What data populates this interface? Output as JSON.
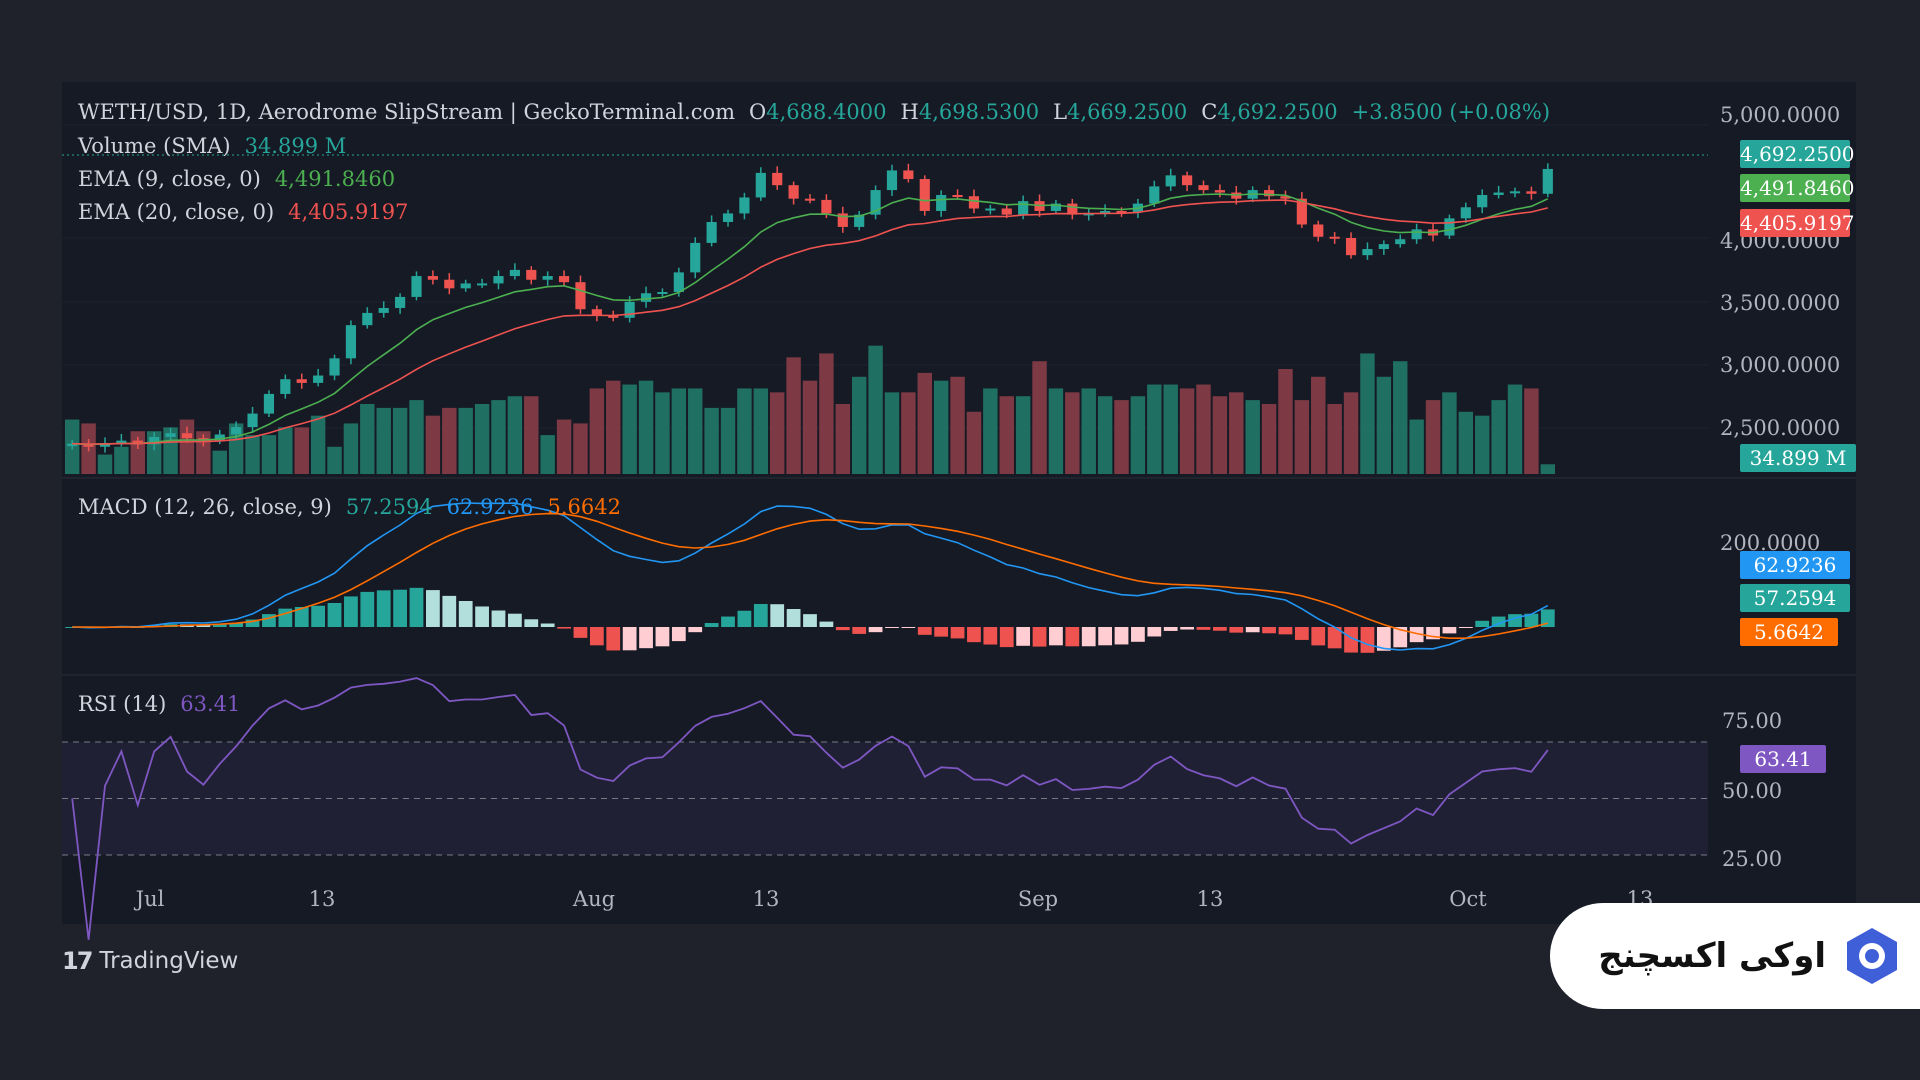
{
  "legend": {
    "symbol": "WETH/USD, 1D, Aerodrome SlipStream | GeckoTerminal.com",
    "open_label": "O",
    "open": "4,688.4000",
    "high_label": "H",
    "high": "4,698.5300",
    "low_label": "L",
    "low": "4,669.2500",
    "close_label": "C",
    "close": "4,692.2500",
    "change": "+3.8500 (+0.08%)",
    "volume_label": "Volume (SMA)",
    "volume": "34.899 M",
    "ema9_label": "EMA (9, close, 0)",
    "ema9": "4,491.8460",
    "ema20_label": "EMA (20, close, 0)",
    "ema20": "4,405.9197",
    "macd_label": "MACD (12, 26, close, 9)",
    "macd_hist": "57.2594",
    "macd_line": "62.9236",
    "macd_signal": "5.6642",
    "rsi_label": "RSI (14)",
    "rsi": "63.41"
  },
  "badges": {
    "price": "4,692.2500",
    "ema9": "4,491.8460",
    "ema20": "4,405.9197",
    "volume": "34.899 M",
    "macd_line": "62.9236",
    "macd_hist": "57.2594",
    "macd_signal": "5.6642",
    "rsi": "63.41"
  },
  "colors": {
    "up": "#26a69a",
    "down": "#ef5350",
    "ema9": "#4caf50",
    "ema20": "#ef5350",
    "macd": "#2196f3",
    "signal": "#ff6d00",
    "rsi": "#7e57c2"
  },
  "brand": {
    "tradingview": "TradingView",
    "okx": "اوکی اکسچنج"
  },
  "chart_data": {
    "type": "candlestick",
    "price_axis": {
      "ticks": [
        "5,000.0000",
        "4,000.0000",
        "3,500.0000",
        "3,000.0000",
        "2,500.0000"
      ],
      "range": [
        2200,
        5050
      ]
    },
    "time_axis": {
      "ticks": [
        "Jul",
        "13",
        "Aug",
        "13",
        "Sep",
        "13",
        "Oct",
        "13"
      ]
    },
    "macd_axis": {
      "ticks": [
        "200.0000"
      ]
    },
    "rsi_axis": {
      "ticks": [
        "75.00",
        "50.00",
        "25.00"
      ],
      "bands": [
        70,
        50,
        30
      ]
    },
    "closes": [
      2455,
      2430,
      2460,
      2480,
      2450,
      2510,
      2540,
      2500,
      2480,
      2530,
      2590,
      2700,
      2860,
      2980,
      2950,
      3010,
      3150,
      3420,
      3520,
      3560,
      3650,
      3820,
      3790,
      3720,
      3760,
      3760,
      3820,
      3870,
      3790,
      3820,
      3770,
      3550,
      3500,
      3480,
      3610,
      3680,
      3690,
      3850,
      4090,
      4260,
      4330,
      4460,
      4660,
      4560,
      4450,
      4440,
      4330,
      4220,
      4320,
      4520,
      4680,
      4610,
      4350,
      4480,
      4470,
      4370,
      4370,
      4320,
      4430,
      4350,
      4410,
      4320,
      4330,
      4350,
      4340,
      4410,
      4550,
      4640,
      4560,
      4520,
      4500,
      4450,
      4520,
      4470,
      4450,
      4240,
      4140,
      4130,
      3990,
      4040,
      4080,
      4120,
      4200,
      4150,
      4290,
      4380,
      4480,
      4500,
      4510,
      4490,
      4692
    ],
    "volume_M": [
      28,
      26,
      10,
      14,
      22,
      22,
      24,
      28,
      22,
      12,
      26,
      20,
      20,
      24,
      24,
      30,
      14,
      26,
      36,
      34,
      34,
      38,
      30,
      34,
      34,
      36,
      38,
      40,
      40,
      20,
      28,
      26,
      44,
      48,
      46,
      48,
      42,
      44,
      44,
      34,
      34,
      44,
      44,
      42,
      60,
      48,
      62,
      36,
      50,
      66,
      42,
      42,
      52,
      48,
      50,
      32,
      44,
      40,
      40,
      58,
      44,
      42,
      44,
      40,
      38,
      40,
      46,
      46,
      44,
      46,
      40,
      42,
      38,
      36,
      54,
      38,
      50,
      36,
      42,
      62,
      50,
      58,
      28,
      38,
      42,
      32,
      30,
      38,
      46,
      44,
      5
    ]
  }
}
